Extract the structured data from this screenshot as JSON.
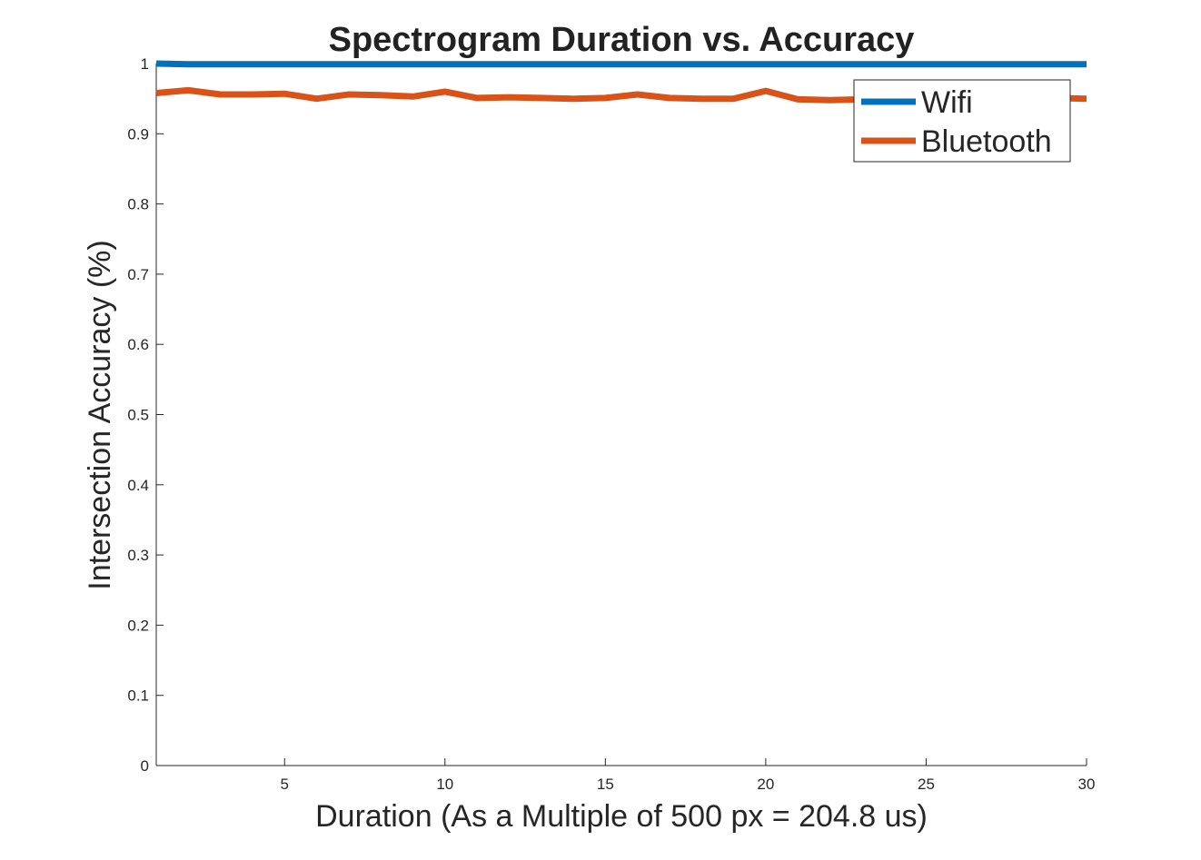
{
  "chart_data": {
    "type": "line",
    "title": "Spectrogram Duration vs. Accuracy",
    "xlabel": "Duration (As a Multiple of 500 px = 204.8 us)",
    "ylabel": "Intersection Accuracy (%)",
    "xlim": [
      1,
      30
    ],
    "ylim": [
      0,
      1
    ],
    "xticks": [
      5,
      10,
      15,
      20,
      25,
      30
    ],
    "yticks": [
      0,
      0.1,
      0.2,
      0.3,
      0.4,
      0.5,
      0.6,
      0.7,
      0.8,
      0.9,
      1
    ],
    "ytick_labels": [
      "0",
      "0.1",
      "0.2",
      "0.3",
      "0.4",
      "0.5",
      "0.6",
      "0.7",
      "0.8",
      "0.9",
      "1"
    ],
    "grid": false,
    "legend_position": "top-right",
    "x": [
      1,
      2,
      3,
      4,
      5,
      6,
      7,
      8,
      9,
      10,
      11,
      12,
      13,
      14,
      15,
      16,
      17,
      18,
      19,
      20,
      21,
      22,
      23,
      24,
      25,
      26,
      27,
      28,
      29,
      30
    ],
    "series": [
      {
        "name": "Wifi",
        "color": "#0072BD",
        "values": [
          1.0,
          0.999,
          0.999,
          0.999,
          0.999,
          0.999,
          0.999,
          0.999,
          0.999,
          0.999,
          0.999,
          0.999,
          0.999,
          0.999,
          0.999,
          0.999,
          0.999,
          0.999,
          0.999,
          0.999,
          0.999,
          0.999,
          0.999,
          0.999,
          0.999,
          0.999,
          0.999,
          0.999,
          0.999,
          0.999
        ]
      },
      {
        "name": "Bluetooth",
        "color": "#D95319",
        "values": [
          0.958,
          0.962,
          0.956,
          0.956,
          0.957,
          0.95,
          0.956,
          0.955,
          0.953,
          0.96,
          0.951,
          0.952,
          0.951,
          0.95,
          0.951,
          0.956,
          0.951,
          0.95,
          0.95,
          0.961,
          0.949,
          0.948,
          0.949,
          0.951,
          0.952,
          0.952,
          0.951,
          0.951,
          0.951,
          0.95
        ]
      }
    ]
  }
}
